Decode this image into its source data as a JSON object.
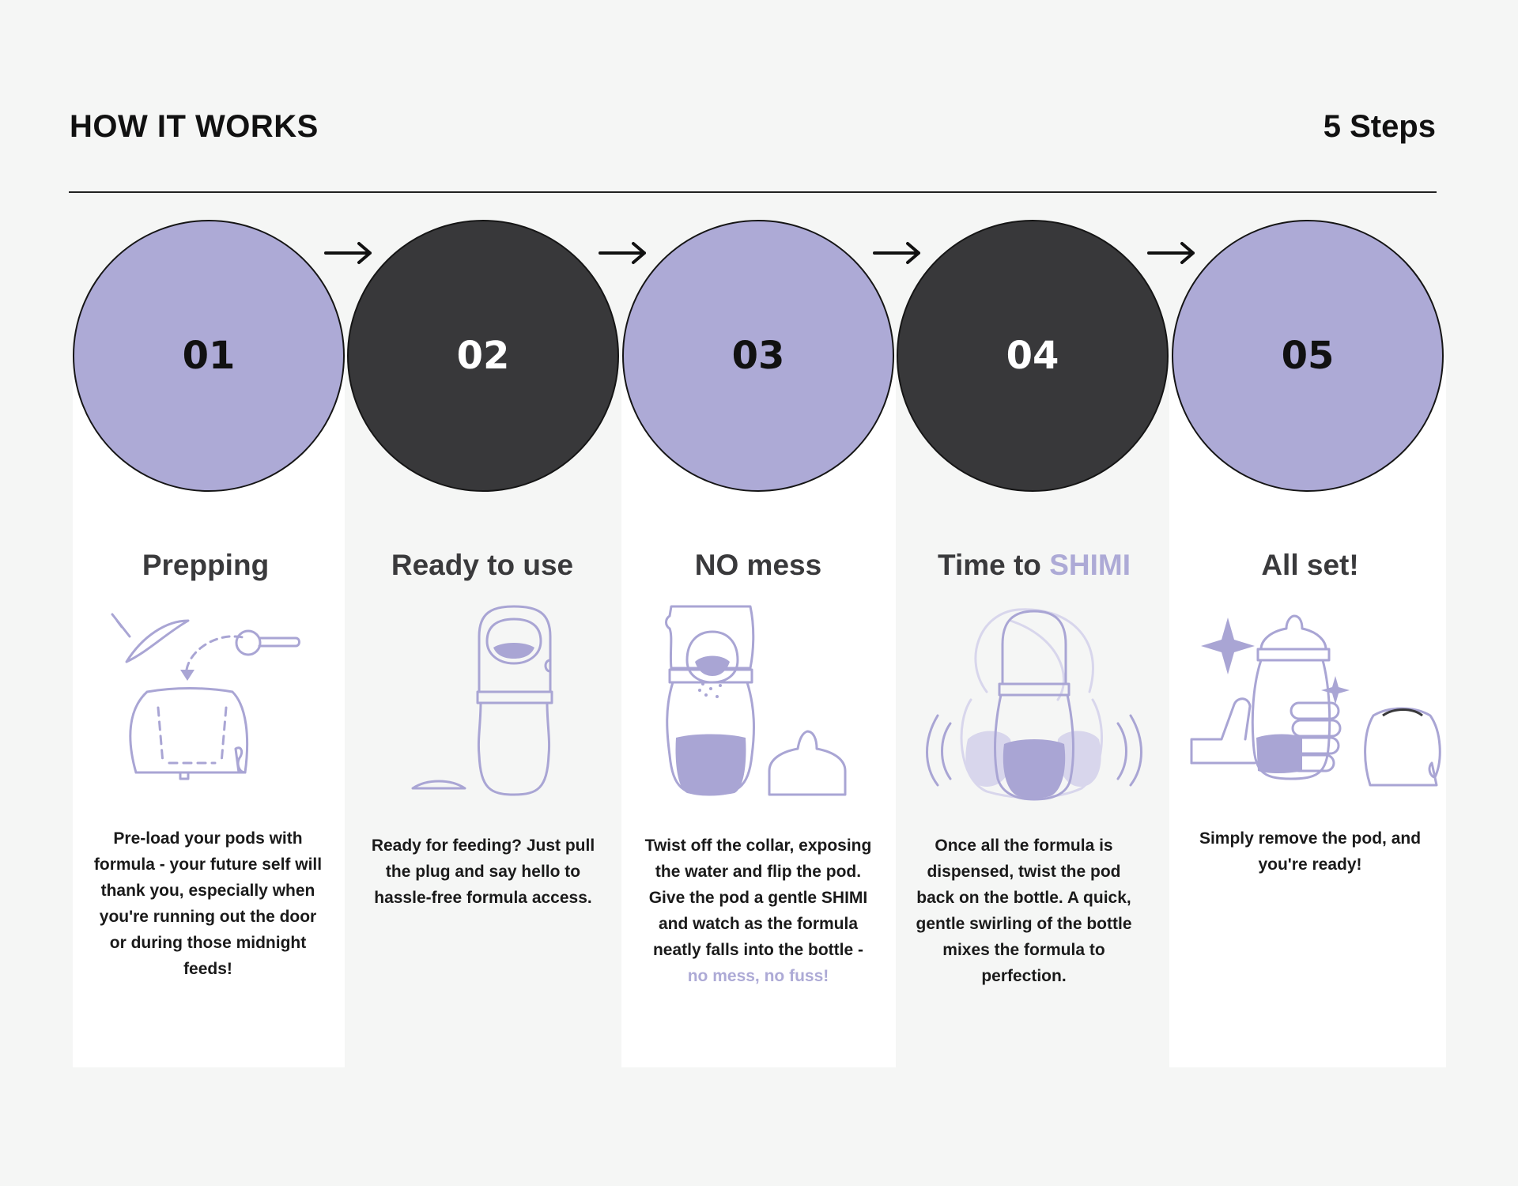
{
  "header": {
    "title": "HOW IT WORKS",
    "steps_count": "5 Steps"
  },
  "colors": {
    "lavender": "#adaad6",
    "dark": "#38383a",
    "line": "#a9a5d4",
    "background": "#f5f6f5",
    "panel": "#ffffff"
  },
  "steps": [
    {
      "number": "01",
      "heading": "Prepping",
      "illustration": "pod-filling-icon",
      "description": "Pre-load your pods with formula - your future self will thank you, especially when you're running out the door or during those midnight feeds!"
    },
    {
      "number": "02",
      "heading": "Ready to use",
      "illustration": "bottle-with-plug-icon",
      "description": "Ready for feeding? Just pull the plug and say hello to hassle-free formula access."
    },
    {
      "number": "03",
      "heading": "NO mess",
      "illustration": "flipped-pod-bottle-icon",
      "description_main": "Twist off the collar, exposing the water and flip the pod. Give the pod a gentle SHIMI and watch as the formula neatly falls into the bottle - ",
      "description_accent": "no mess, no fuss!"
    },
    {
      "number": "04",
      "heading_main": "Time to ",
      "heading_accent": "SHIMI",
      "illustration": "swirling-bottle-icon",
      "description": "Once all the formula is dispensed, twist the pod back on the bottle. A quick, gentle swirling of the bottle mixes the formula to perfection."
    },
    {
      "number": "05",
      "heading": "All set!",
      "illustration": "hand-holding-bottle-icon",
      "description": "Simply remove the pod, and you're ready!"
    }
  ]
}
